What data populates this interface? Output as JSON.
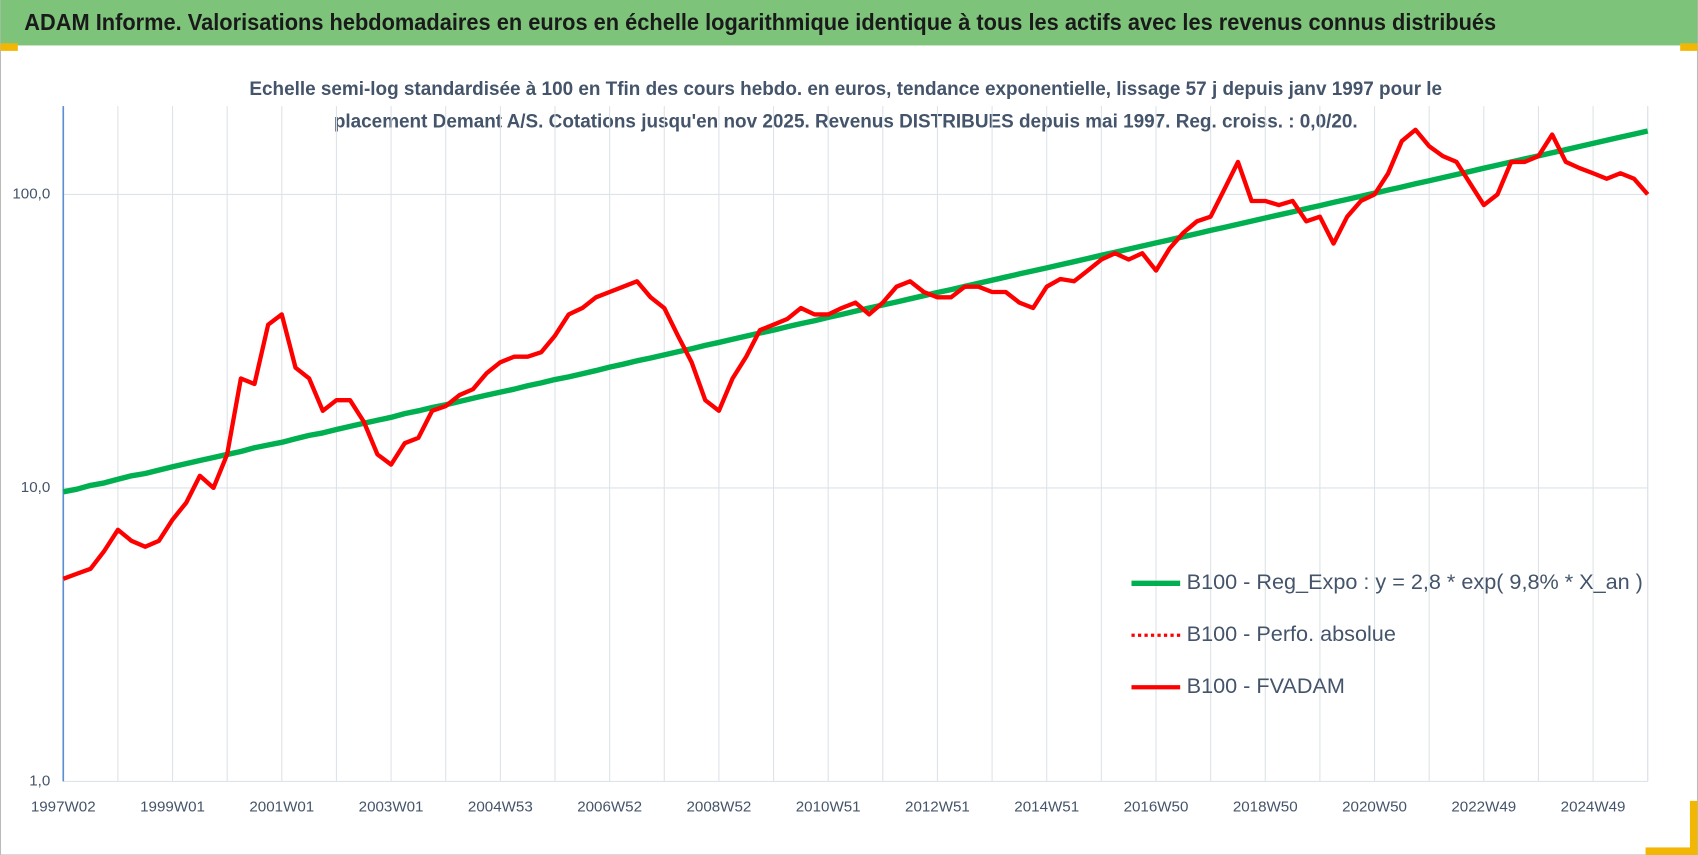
{
  "chart_data": {
    "type": "line",
    "title": "ADAM Informe. Valorisations hebdomadaires en euros en échelle logarithmique identique à tous les actifs avec les revenus connus distribués",
    "subtitle": [
      "Echelle semi-log standardisée à 100 en Tfin des cours hebdo. en euros, tendance exponentielle, lissage 57 j depuis janv 1997 pour le",
      "placement Demant A/S. Cotations jusqu'en nov 2025.  Revenus DISTRIBUES depuis mai 1997. Reg. croiss. : 0,0/20."
    ],
    "categories": [
      "1997W02",
      null,
      null,
      null,
      null,
      null,
      null,
      null,
      "1999W01",
      null,
      null,
      null,
      null,
      null,
      null,
      null,
      "2001W01",
      null,
      null,
      null,
      null,
      null,
      null,
      null,
      "2003W01",
      null,
      null,
      null,
      null,
      null,
      null,
      null,
      "2004W53",
      null,
      null,
      null,
      null,
      null,
      null,
      null,
      "2006W52",
      null,
      null,
      null,
      null,
      null,
      null,
      null,
      "2008W52",
      null,
      null,
      null,
      null,
      null,
      null,
      null,
      "2010W51",
      null,
      null,
      null,
      null,
      null,
      null,
      null,
      "2012W51",
      null,
      null,
      null,
      null,
      null,
      null,
      null,
      "2014W51",
      null,
      null,
      null,
      null,
      null,
      null,
      null,
      "2016W50",
      null,
      null,
      null,
      null,
      null,
      null,
      null,
      "2018W50",
      null,
      null,
      null,
      null,
      null,
      null,
      null,
      "2020W50",
      null,
      null,
      null,
      null,
      null,
      null,
      null,
      "2022W49",
      null,
      null,
      null,
      null,
      null,
      null,
      null,
      "2024W49",
      null,
      null,
      null,
      null
    ],
    "series": [
      {
        "name": "B100 - Reg_Expo : y = 2,8 * exp( 9,8% *  X_an )",
        "color": "#00b050",
        "width": 5,
        "values": [
          9.7,
          9.9,
          10.2,
          10.4,
          10.7,
          11.0,
          11.2,
          11.5,
          11.8,
          12.1,
          12.4,
          12.7,
          13.0,
          13.3,
          13.7,
          14.0,
          14.3,
          14.7,
          15.1,
          15.4,
          15.8,
          16.2,
          16.6,
          17.0,
          17.4,
          17.9,
          18.3,
          18.8,
          19.2,
          19.7,
          20.2,
          20.7,
          21.2,
          21.7,
          22.3,
          22.8,
          23.4,
          23.9,
          24.5,
          25.1,
          25.8,
          26.4,
          27.1,
          27.7,
          28.4,
          29.1,
          29.8,
          30.6,
          31.3,
          32.1,
          32.9,
          33.7,
          34.5,
          35.4,
          36.3,
          37.1,
          38.1,
          39.0,
          40.0,
          41.0,
          42.0,
          43.0,
          44.1,
          45.2,
          46.3,
          47.4,
          48.6,
          49.8,
          51.0,
          52.3,
          53.6,
          54.9,
          56.2,
          57.6,
          59.0,
          60.5,
          62.0,
          63.5,
          65.1,
          66.7,
          68.4,
          70.0,
          71.8,
          73.5,
          75.4,
          77.2,
          79.1,
          81.1,
          83.1,
          85.1,
          87.2,
          89.4,
          91.6,
          93.9,
          96.2,
          98.6,
          101.0,
          103.5,
          106.0,
          108.7,
          111.3,
          114.1,
          116.9,
          119.8,
          122.8,
          125.8,
          128.9,
          132.1,
          135.3,
          138.7,
          142.1,
          145.6,
          149.2,
          152.9,
          156.7,
          160.5,
          164.5
        ]
      },
      {
        "name": "B100 - Perfo. absolue",
        "color": "#ff0000",
        "width": 3,
        "dash": "dotted"
      },
      {
        "name": "B100 - FVADAM",
        "color": "#ff0000",
        "width": 4,
        "values": [
          4.9,
          5.1,
          5.3,
          6.1,
          7.2,
          6.6,
          6.3,
          6.6,
          7.8,
          8.9,
          11,
          10,
          13,
          23.6,
          22.6,
          36,
          39,
          25.7,
          23.6,
          18.3,
          19.9,
          19.9,
          16.8,
          13,
          12,
          14.2,
          14.8,
          18.3,
          19,
          20.7,
          21.7,
          24.6,
          26.8,
          28,
          28,
          29,
          33,
          39,
          41,
          44.6,
          46.5,
          48.5,
          50.6,
          44.6,
          41,
          33,
          26.8,
          19.9,
          18.3,
          23.6,
          28,
          34.5,
          36,
          37.6,
          41,
          39,
          39,
          41,
          42.8,
          39,
          42.8,
          48.5,
          50.6,
          46.5,
          44.6,
          44.6,
          48.5,
          48.5,
          46.5,
          46.5,
          42.8,
          41,
          48.5,
          51.5,
          50.6,
          55,
          60,
          63,
          60,
          63,
          55,
          65.5,
          74,
          81,
          84,
          104,
          129,
          95,
          95,
          92,
          95,
          81,
          84,
          68,
          84,
          95,
          100,
          118,
          152,
          166,
          146,
          135,
          129,
          109,
          92,
          100,
          129,
          129,
          135,
          160,
          129,
          123,
          118,
          113,
          118,
          113,
          100
        ]
      }
    ],
    "ylim": [
      1,
      200
    ],
    "yscale": "log",
    "yticks": [
      {
        "value": 1,
        "label": "1,0"
      },
      {
        "value": 10,
        "label": "10,0"
      },
      {
        "value": 100,
        "label": "100,0"
      }
    ],
    "grid": true
  }
}
